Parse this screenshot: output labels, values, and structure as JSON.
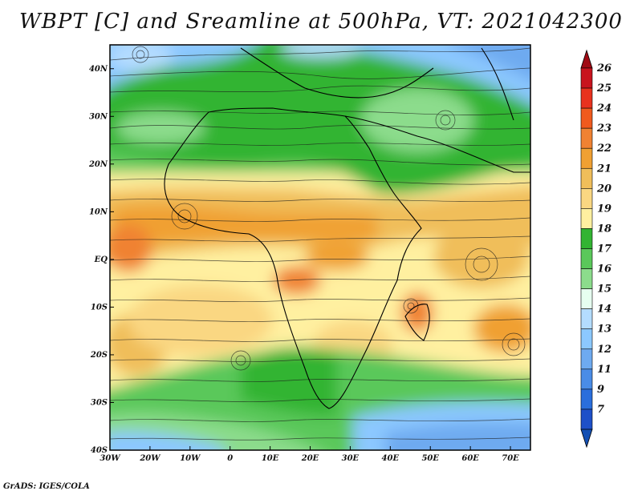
{
  "title": "WBPT [C] and Sreamline at 500hPa, VT: 2021042300",
  "credit": "GrADS: IGES/COLA",
  "map": {
    "lon_range": [
      -30,
      75
    ],
    "lat_range": [
      -40,
      45
    ],
    "lon_ticks": [
      {
        "value": -30,
        "label": "30W"
      },
      {
        "value": -20,
        "label": "20W"
      },
      {
        "value": -10,
        "label": "10W"
      },
      {
        "value": 0,
        "label": "0"
      },
      {
        "value": 10,
        "label": "10E"
      },
      {
        "value": 20,
        "label": "20E"
      },
      {
        "value": 30,
        "label": "30E"
      },
      {
        "value": 40,
        "label": "40E"
      },
      {
        "value": 50,
        "label": "50E"
      },
      {
        "value": 60,
        "label": "60E"
      },
      {
        "value": 70,
        "label": "70E"
      }
    ],
    "lat_ticks": [
      {
        "value": 40,
        "label": "40N"
      },
      {
        "value": 30,
        "label": "30N"
      },
      {
        "value": 20,
        "label": "20N"
      },
      {
        "value": 10,
        "label": "10N"
      },
      {
        "value": 0,
        "label": "EQ"
      },
      {
        "value": -10,
        "label": "10S"
      },
      {
        "value": -20,
        "label": "20S"
      },
      {
        "value": -30,
        "label": "30S"
      },
      {
        "value": -40,
        "label": "40S"
      }
    ]
  },
  "colorbar": {
    "labels": [
      "26",
      "25",
      "24",
      "23",
      "22",
      "21",
      "20",
      "19",
      "18",
      "17",
      "16",
      "15",
      "14",
      "13",
      "12",
      "11",
      "9",
      "7"
    ],
    "colors": [
      "#c8141e",
      "#e8321e",
      "#f05a1e",
      "#f08232",
      "#f0a032",
      "#f0be5a",
      "#fad782",
      "#fff0a0",
      "#32b432",
      "#5ac85a",
      "#8cdc8c",
      "#e6fff0",
      "#b4dcff",
      "#8cc8ff",
      "#6eaaf0",
      "#4a8ce6",
      "#2a6edc",
      "#1e50c8"
    ],
    "top_cap": "#a00a14",
    "bottom_cap": "#1450b4"
  }
}
